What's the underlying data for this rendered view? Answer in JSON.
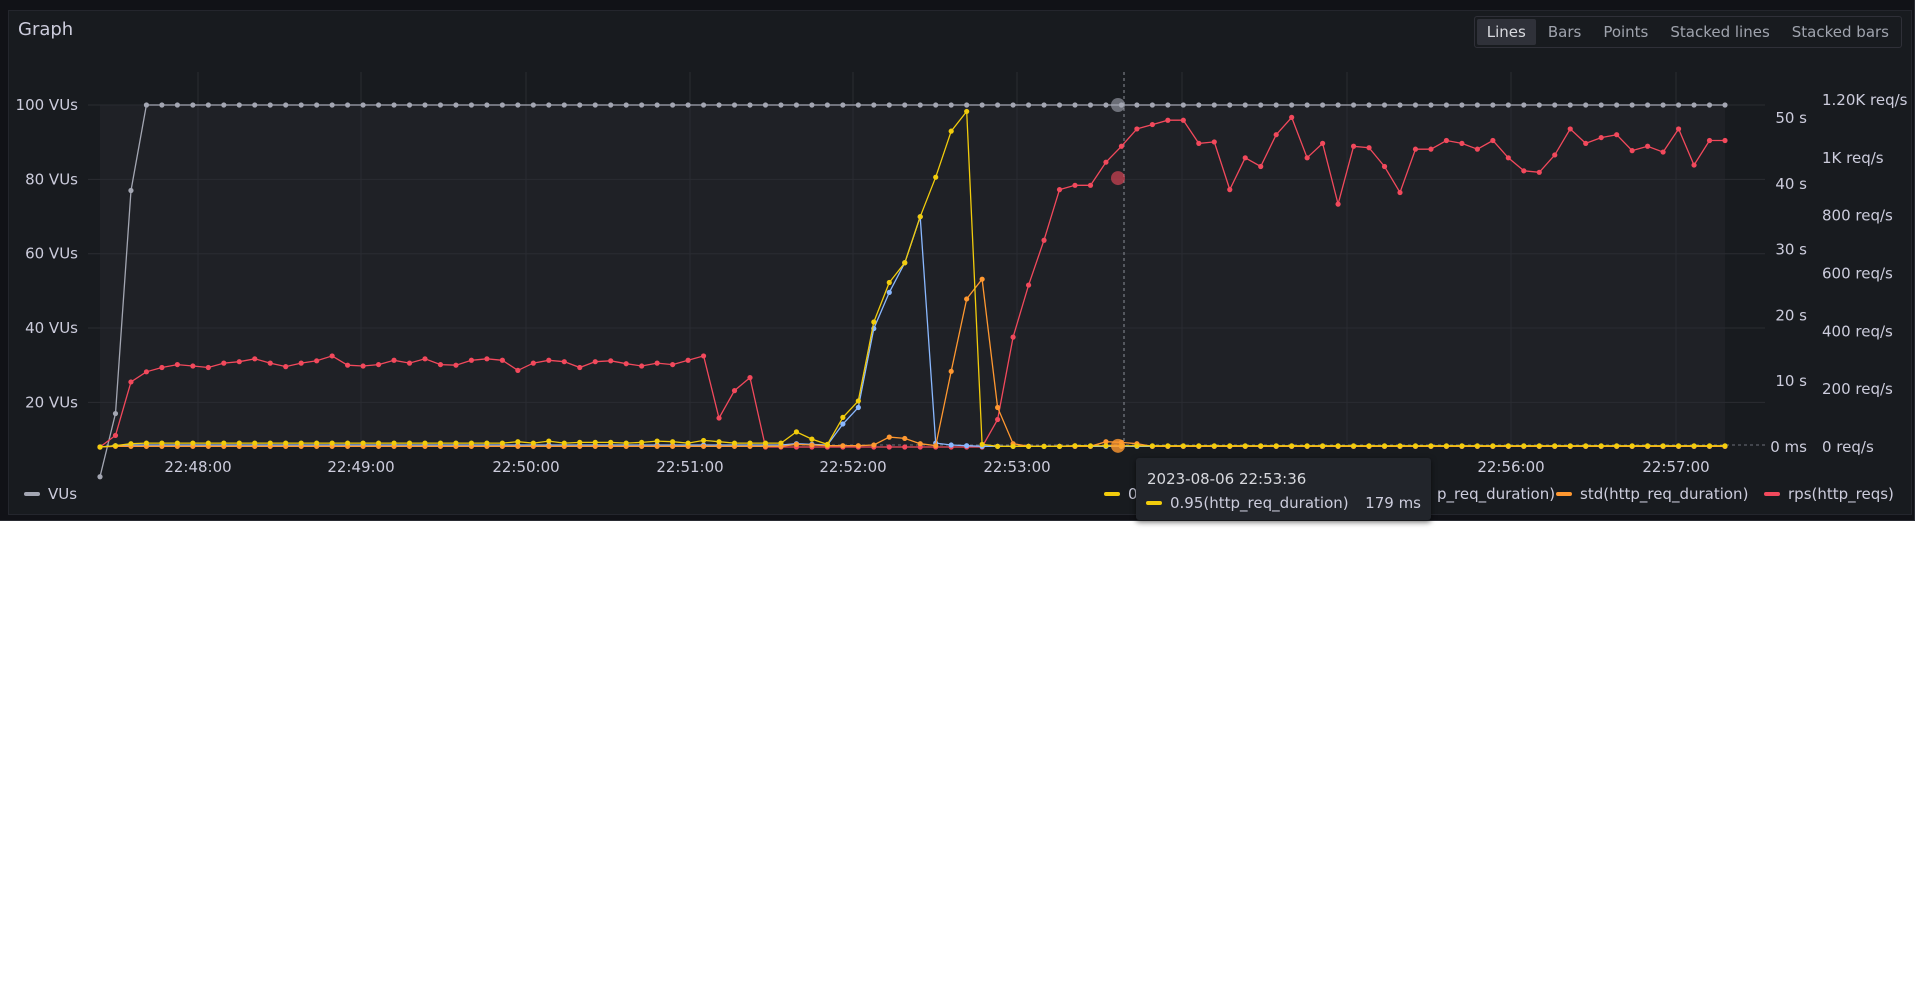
{
  "panel": {
    "title": "Graph",
    "modes": [
      "Lines",
      "Bars",
      "Points",
      "Stacked lines",
      "Stacked bars"
    ],
    "active_mode": "Lines"
  },
  "tooltip": {
    "time": "2023-08-06 22:53:36",
    "series": "0.95(http_req_duration)",
    "value": "179 ms"
  },
  "legend": [
    {
      "label": "VUs",
      "color": "#a3a6b2"
    },
    {
      "label": "0.95(http_req_duration)",
      "color": "#f2cc0c"
    },
    {
      "label": "avg(http_req_duration)",
      "color": "#8ab8ff"
    },
    {
      "label": "std(http_req_duration)",
      "color": "#ff9830"
    },
    {
      "label": "rps(http_reqs)",
      "color": "#f2495c"
    }
  ],
  "legend_visible_text": {
    "avg_fragment": "p_req_duration)"
  },
  "chart_data": {
    "type": "line",
    "x_ticks": [
      "22:48:00",
      "22:49:00",
      "22:50:00",
      "22:51:00",
      "22:52:00",
      "22:53:00",
      "22:56:00",
      "22:57:00"
    ],
    "y_left_ticks": [
      "100 VUs",
      "80 VUs",
      "60 VUs",
      "40 VUs",
      "20 VUs"
    ],
    "y_seconds_ticks": [
      "50 s",
      "40 s",
      "30 s",
      "20 s",
      "10 s",
      "0 ms"
    ],
    "y_rps_ticks": [
      "1.20K req/s",
      "1K req/s",
      "800 req/s",
      "600 req/s",
      "400 req/s",
      "200 req/s",
      "0 req/s"
    ],
    "y_left_range": [
      8,
      100
    ],
    "y_seconds_range": [
      0,
      50
    ],
    "y_rps_range": [
      0,
      1200
    ],
    "grid": true,
    "series": [
      {
        "name": "VUs",
        "color": "#a3a6b2",
        "axis": "vus",
        "values": [
          0,
          17,
          77,
          100,
          100,
          100,
          100,
          100,
          100,
          100,
          100,
          100,
          100,
          100,
          100,
          100,
          100,
          100,
          100,
          100,
          100,
          100,
          100,
          100,
          100,
          100,
          100,
          100,
          100,
          100,
          100,
          100,
          100,
          100,
          100,
          100,
          100,
          100,
          100,
          100,
          100,
          100,
          100,
          100,
          100,
          100,
          100,
          100,
          100,
          100,
          100,
          100,
          100,
          100,
          100,
          100,
          100,
          100,
          100,
          100,
          100,
          100,
          100,
          100,
          100,
          100,
          100,
          100,
          100,
          100,
          100,
          100,
          100,
          100,
          100,
          100,
          100,
          100,
          100,
          100,
          100,
          100,
          100,
          100,
          100,
          100,
          100,
          100,
          100,
          100,
          100,
          100,
          100,
          100,
          100,
          100,
          100,
          100,
          100,
          100,
          100,
          100,
          100,
          100,
          100,
          100
        ]
      },
      {
        "name": "0.95(http_req_duration)",
        "color": "#f2cc0c",
        "axis": "seconds",
        "values": [
          0,
          0.2,
          0.5,
          0.6,
          0.6,
          0.6,
          0.6,
          0.6,
          0.6,
          0.6,
          0.6,
          0.6,
          0.6,
          0.6,
          0.6,
          0.6,
          0.6,
          0.6,
          0.6,
          0.6,
          0.6,
          0.6,
          0.6,
          0.6,
          0.6,
          0.6,
          0.6,
          0.8,
          0.6,
          0.9,
          0.6,
          0.7,
          0.7,
          0.7,
          0.6,
          0.7,
          0.9,
          0.8,
          0.6,
          1.0,
          0.8,
          0.6,
          0.6,
          0.6,
          0.6,
          2.3,
          1.2,
          0.4,
          4.5,
          7.0,
          19.0,
          25.0,
          28.0,
          35.0,
          41.0,
          48.0,
          51.0,
          0.4,
          0.1,
          0.1,
          0.1,
          0.1,
          0.1,
          0.2,
          0.18,
          0.18,
          0.18,
          0.18,
          0.18,
          0.18,
          0.18,
          0.18,
          0.18,
          0.18,
          0.18,
          0.18,
          0.18,
          0.18,
          0.18,
          0.18,
          0.18,
          0.18,
          0.18,
          0.18,
          0.18,
          0.18,
          0.18,
          0.18,
          0.18,
          0.18,
          0.18,
          0.18,
          0.18,
          0.18,
          0.18,
          0.18,
          0.18,
          0.18,
          0.18,
          0.18,
          0.18,
          0.18,
          0.18,
          0.18,
          0.18,
          0.18
        ]
      },
      {
        "name": "avg(http_req_duration)",
        "color": "#8ab8ff",
        "axis": "seconds",
        "values": [
          0,
          0.2,
          0.3,
          0.3,
          0.3,
          0.3,
          0.3,
          0.3,
          0.3,
          0.3,
          0.3,
          0.3,
          0.3,
          0.3,
          0.3,
          0.3,
          0.3,
          0.3,
          0.3,
          0.3,
          0.3,
          0.3,
          0.3,
          0.3,
          0.3,
          0.3,
          0.3,
          0.3,
          0.3,
          0.3,
          0.3,
          0.3,
          0.3,
          0.3,
          0.3,
          0.3,
          0.3,
          0.3,
          0.3,
          0.3,
          0.3,
          0.3,
          0.3,
          0.3,
          0.3,
          0.5,
          0.4,
          0.3,
          3.5,
          6.0,
          18.0,
          23.5,
          28.0,
          35.0,
          0.6,
          0.3,
          0.2,
          0.1,
          0.1,
          0.1,
          0.1,
          0.1,
          0.1,
          0.1,
          0.1,
          0.1,
          0.1,
          0.1,
          0.1,
          0.1,
          0.1,
          0.1,
          0.1,
          0.1,
          0.1,
          0.1,
          0.1,
          0.1,
          0.1,
          0.1,
          0.1,
          0.1,
          0.1,
          0.1,
          0.1,
          0.1,
          0.1,
          0.1,
          0.1,
          0.1,
          0.1,
          0.1,
          0.1,
          0.1,
          0.1,
          0.1,
          0.1,
          0.1,
          0.1,
          0.1,
          0.1,
          0.1,
          0.1,
          0.1,
          0.1,
          0.1
        ]
      },
      {
        "name": "std(http_req_duration)",
        "color": "#ff9830",
        "axis": "seconds",
        "values": [
          0,
          0.1,
          0.1,
          0.1,
          0.1,
          0.1,
          0.1,
          0.1,
          0.1,
          0.1,
          0.1,
          0.1,
          0.1,
          0.1,
          0.1,
          0.1,
          0.1,
          0.1,
          0.1,
          0.1,
          0.1,
          0.1,
          0.1,
          0.1,
          0.1,
          0.1,
          0.1,
          0.1,
          0.1,
          0.1,
          0.1,
          0.1,
          0.1,
          0.1,
          0.1,
          0.1,
          0.1,
          0.1,
          0.1,
          0.1,
          0.1,
          0.1,
          0.1,
          0.1,
          0.1,
          0.4,
          0.3,
          0.2,
          0.2,
          0.2,
          0.3,
          1.5,
          1.3,
          0.5,
          0.2,
          11.5,
          22.5,
          25.5,
          6.0,
          0.5,
          0.1,
          0.1,
          0.1,
          0.1,
          0.1,
          0.8,
          0.7,
          0.5,
          0.1,
          0.1,
          0.1,
          0.1,
          0.1,
          0.1,
          0.1,
          0.1,
          0.1,
          0.1,
          0.1,
          0.1,
          0.1,
          0.1,
          0.1,
          0.1,
          0.1,
          0.1,
          0.1,
          0.1,
          0.1,
          0.1,
          0.1,
          0.1,
          0.1,
          0.1,
          0.1,
          0.1,
          0.1,
          0.1,
          0.1,
          0.1,
          0.1,
          0.1,
          0.1,
          0.1,
          0.1,
          0.1
        ]
      },
      {
        "name": "rps(http_reqs)",
        "color": "#f2495c",
        "axis": "rps",
        "values": [
          0,
          40,
          225,
          260,
          275,
          285,
          280,
          275,
          290,
          295,
          305,
          290,
          278,
          290,
          298,
          315,
          283,
          280,
          285,
          300,
          290,
          305,
          285,
          283,
          300,
          305,
          300,
          265,
          290,
          300,
          295,
          275,
          295,
          298,
          288,
          280,
          290,
          285,
          300,
          315,
          100,
          195,
          240,
          0,
          0,
          0,
          0,
          0,
          0,
          0,
          0,
          0,
          0,
          0,
          0,
          0,
          0,
          0,
          0,
          0,
          0,
          0,
          0,
          0,
          0,
          0,
          0,
          0,
          0,
          0,
          0,
          0,
          0,
          0,
          0,
          0,
          0,
          0,
          0,
          0,
          0,
          0,
          0,
          0,
          0,
          0,
          0,
          0,
          0,
          0,
          0,
          0,
          0,
          0,
          0,
          0,
          0,
          0,
          0,
          0,
          0,
          0,
          0,
          0,
          0,
          0
        ]
      }
    ],
    "rps_tail": [
      0,
      0,
      0,
      0,
      0,
      0,
      0,
      0,
      0,
      0,
      0,
      0,
      0,
      0,
      0,
      95,
      380,
      560,
      715,
      890,
      905,
      905,
      985,
      1040,
      1100,
      1115,
      1130,
      1130,
      1050,
      1055,
      890,
      1000,
      970,
      1080,
      1140,
      1000,
      1050,
      840,
      1040,
      1035,
      970,
      880,
      1030,
      1030,
      1060,
      1050,
      1030,
      1060,
      1000,
      955,
      950,
      1010,
      1100,
      1050,
      1070,
      1080,
      1025,
      1040,
      1020,
      1100,
      975,
      1060,
      1060
    ]
  }
}
